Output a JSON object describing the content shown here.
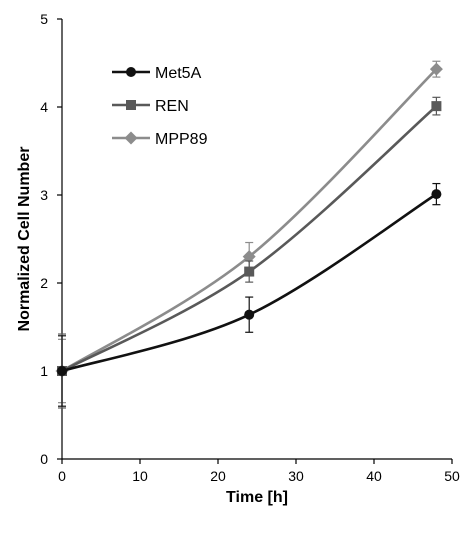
{
  "chart_data": {
    "type": "line",
    "title": "",
    "xlabel": "Time [h]",
    "ylabel": "Normalized Cell Number",
    "xlim": [
      0,
      50
    ],
    "ylim": [
      0,
      5
    ],
    "x_ticks": [
      0,
      10,
      20,
      30,
      40,
      50
    ],
    "y_ticks": [
      0,
      1,
      2,
      3,
      4,
      5
    ],
    "grid": false,
    "legend_position": "top-left",
    "x": [
      0,
      24,
      48
    ],
    "series": [
      {
        "name": "Met5A",
        "marker": "circle",
        "color": "#111111",
        "values": [
          1.0,
          1.64,
          3.01
        ],
        "error": [
          0.4,
          0.2,
          0.12
        ]
      },
      {
        "name": "REN",
        "marker": "square",
        "color": "#595959",
        "values": [
          1.0,
          2.13,
          4.01
        ],
        "error": [
          0.42,
          0.12,
          0.1
        ]
      },
      {
        "name": "MPP89",
        "marker": "diamond",
        "color": "#8c8c8c",
        "values": [
          1.0,
          2.3,
          4.43
        ],
        "error": [
          0.36,
          0.16,
          0.09
        ]
      }
    ]
  }
}
